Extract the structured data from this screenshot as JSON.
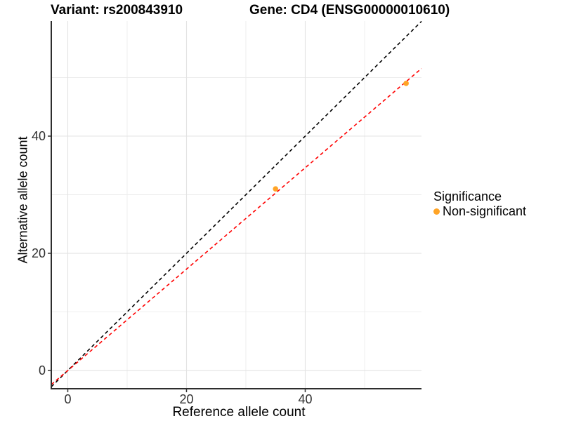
{
  "titles": {
    "variant": "Variant: rs200843910",
    "gene": "Gene: CD4 (ENSG00000010610)"
  },
  "axes": {
    "x_label": "Reference allele count",
    "y_label": "Alternative allele count"
  },
  "legend": {
    "title": "Significance",
    "items": [
      {
        "label": "Non-significant",
        "color": "#FFA426"
      }
    ]
  },
  "colors": {
    "point": "#FFA426",
    "grid_major": "#E3E3E3",
    "grid_minor": "#EDEDED",
    "axis_line": "#2E2E2E",
    "tick_mark": "#333333",
    "tick_text": "#303030"
  },
  "chart_data": {
    "type": "scatter",
    "title": "Variant: rs200843910 | Gene: CD4 (ENSG00000010610)",
    "xlabel": "Reference allele count",
    "ylabel": "Alternative allele count",
    "xlim": [
      -2.78,
      59.59
    ],
    "ylim": [
      -3.11,
      59.64
    ],
    "x_major_ticks": [
      0,
      20,
      40
    ],
    "y_major_ticks": [
      0,
      20,
      40
    ],
    "x_minor_gridlines": [
      10,
      30,
      50
    ],
    "y_minor_gridlines": [
      10,
      30,
      50
    ],
    "grid": true,
    "legend_position": "right",
    "series": [
      {
        "name": "Non-significant",
        "color": "#FFA426",
        "points": [
          {
            "x": 35,
            "y": 31
          },
          {
            "x": 57,
            "y": 49
          }
        ]
      }
    ],
    "reference_lines": [
      {
        "name": "identity",
        "slope": 1,
        "intercept": 0,
        "color": "#000000",
        "style": "dashed"
      },
      {
        "name": "fit",
        "slope": 0.865,
        "intercept": 0,
        "color": "#FF0000",
        "style": "dashed"
      }
    ]
  }
}
